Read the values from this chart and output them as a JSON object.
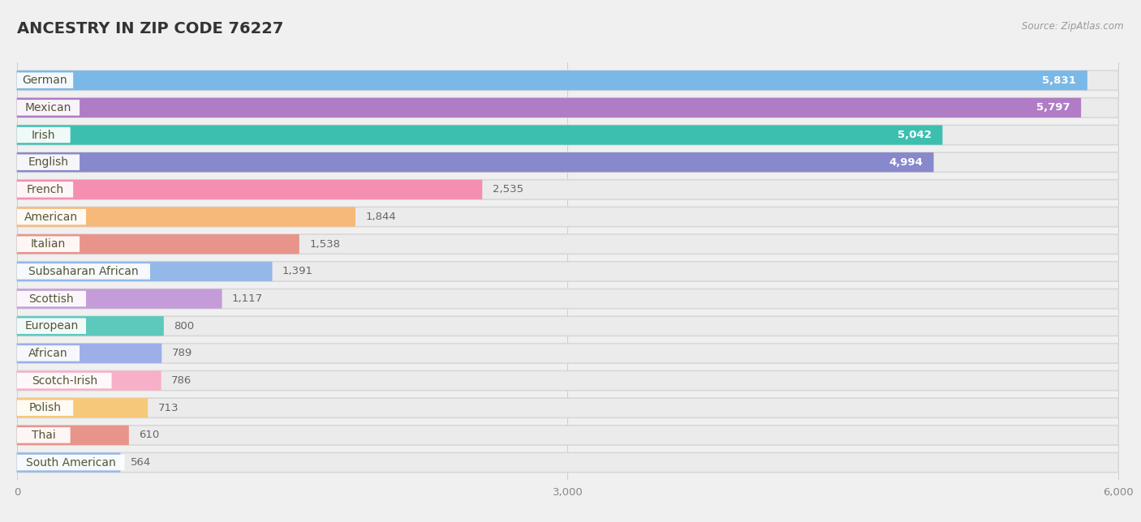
{
  "title": "ANCESTRY IN ZIP CODE 76227",
  "source": "Source: ZipAtlas.com",
  "categories": [
    "German",
    "Mexican",
    "Irish",
    "English",
    "French",
    "American",
    "Italian",
    "Subsaharan African",
    "Scottish",
    "European",
    "African",
    "Scotch-Irish",
    "Polish",
    "Thai",
    "South American"
  ],
  "values": [
    5831,
    5797,
    5042,
    4994,
    2535,
    1844,
    1538,
    1391,
    1117,
    800,
    789,
    786,
    713,
    610,
    564
  ],
  "bar_colors": [
    "#7ab8e8",
    "#b07cc6",
    "#3dbfb0",
    "#8888cc",
    "#f48fb1",
    "#f6b97a",
    "#e8948a",
    "#94b8e8",
    "#c49cd8",
    "#5dc8bc",
    "#9daee8",
    "#f8afc8",
    "#f6c87a",
    "#e8948a",
    "#94b8e8"
  ],
  "xlim_max": 6000,
  "xticks": [
    0,
    3000,
    6000
  ],
  "xtick_labels": [
    "0",
    "3,000",
    "6,000"
  ],
  "bg_color": "#f0f0f0",
  "row_bg_color": "#e8e8e8",
  "bar_bg_color": "#f5f5f5",
  "title_fontsize": 14,
  "label_fontsize": 10,
  "value_fontsize": 9.5
}
